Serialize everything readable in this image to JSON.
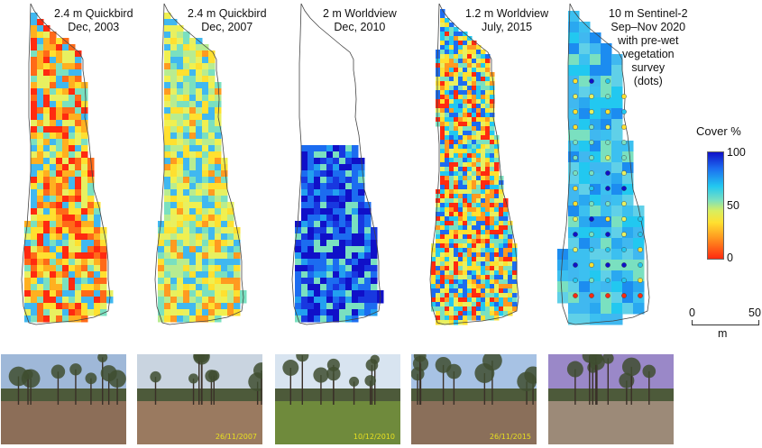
{
  "panels": [
    {
      "line1": "2.4 m Quickbird",
      "line2": "Dec, 2003",
      "line3": "",
      "line4": "",
      "line5": "",
      "line6": "",
      "mode": "warm"
    },
    {
      "line1": "2.4 m Quickbird",
      "line2": "Dec, 2007",
      "line3": "",
      "line4": "",
      "line5": "",
      "line6": "",
      "mode": "yellow"
    },
    {
      "line1": "2 m Worldview",
      "line2": "Dec, 2010",
      "line3": "",
      "line4": "",
      "line5": "",
      "line6": "",
      "mode": "blue"
    },
    {
      "line1": "1.2 m Worldview",
      "line2": "July, 2015",
      "line3": "",
      "line4": "",
      "line5": "",
      "line6": "",
      "mode": "mixed"
    },
    {
      "line1": "10 m Sentinel-2",
      "line2": "Sep–Nov 2020",
      "line3": "with pre-wet",
      "line4": "vegetation",
      "line5": "survey",
      "line6": "(dots)",
      "mode": "sentinel"
    }
  ],
  "legend": {
    "title": "Cover %",
    "tick_top": "100",
    "tick_mid": "50",
    "tick_bottom": "0",
    "colors": [
      "#1010c8",
      "#22c8f0",
      "#d8ee60",
      "#ffe030",
      "#ff2a10"
    ]
  },
  "scalebar": {
    "start": "0",
    "end": "50",
    "unit": "m"
  },
  "photos": [
    {
      "stamp": "",
      "sky": "#9fb8d8",
      "ground": "#8c6e58"
    },
    {
      "stamp": "26/11/2007",
      "sky": "#c9d4e0",
      "ground": "#9a7a60"
    },
    {
      "stamp": "10/12/2010",
      "sky": "#d8e4f0",
      "ground": "#6f8a3c"
    },
    {
      "stamp": "26/11/2015",
      "sky": "#a7c2e4",
      "ground": "#8a6f5a"
    },
    {
      "stamp": "",
      "sky": "#9a88c8",
      "ground": "#9c8a78"
    }
  ]
}
